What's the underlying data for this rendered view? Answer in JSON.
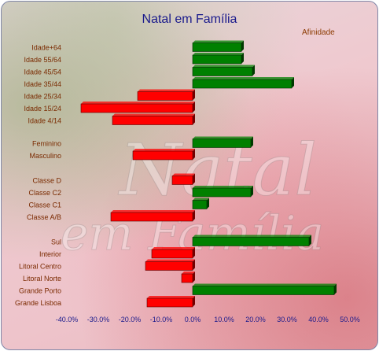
{
  "chart_data": {
    "type": "bar",
    "orientation": "horizontal",
    "title": "Natal em Família",
    "watermark_text": [
      "Natal",
      "em Família"
    ],
    "legend": [
      {
        "name": "Afinidade",
        "position": "top-right"
      }
    ],
    "xlim": [
      -40,
      50
    ],
    "xticks": [
      -40,
      -30,
      -20,
      -10,
      0,
      10,
      20,
      30,
      40,
      50
    ],
    "xtick_labels": [
      "-40.0%",
      "-30.0%",
      "-20.0%",
      "-10.0%",
      "0.0%",
      "10.0%",
      "20.0%",
      "30.0%",
      "40.0%",
      "50.0%"
    ],
    "grid": false,
    "positive_color": "#008000",
    "negative_color": "#ff0000",
    "groups": [
      {
        "categories": [
          "Idade+64",
          "Idade 55/64",
          "Idade 45/54",
          "Idade 35/44",
          "Idade 25/34",
          "Idade 15/24",
          "Idade 4/14"
        ],
        "values": [
          15.5,
          15.5,
          19,
          31.5,
          -17.5,
          -35.5,
          -25.5
        ]
      },
      {
        "categories": [
          "Feminino",
          "Masculino"
        ],
        "values": [
          18.5,
          -19
        ]
      },
      {
        "categories": [
          "Classe D",
          "Classe C2",
          "Classe C1",
          "Classe A/B"
        ],
        "values": [
          -6.5,
          18.5,
          4.5,
          -26
        ]
      },
      {
        "categories": [
          "Sul",
          "Interior",
          "Litoral Centro",
          "Litoral Norte",
          "Grande Porto",
          "Grande Lisboa"
        ],
        "values": [
          37,
          -13,
          -15,
          -3.5,
          45,
          -14.5
        ]
      }
    ]
  }
}
